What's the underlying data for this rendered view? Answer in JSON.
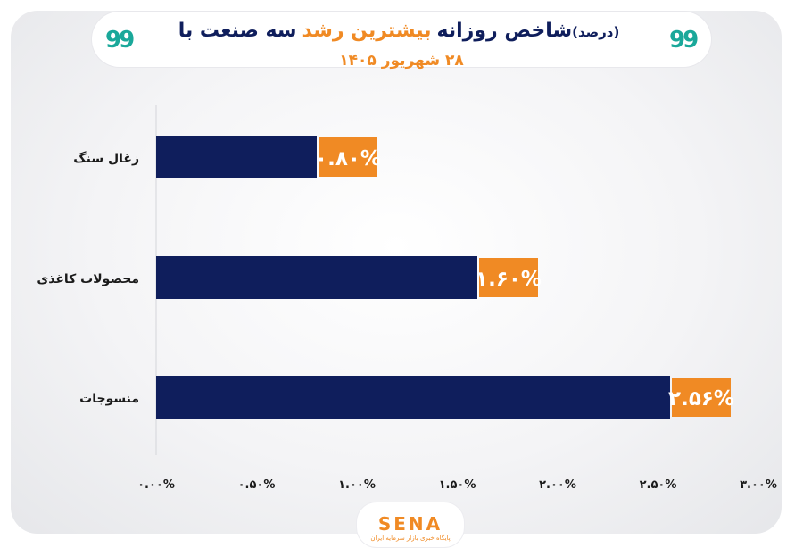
{
  "header": {
    "title_part1": "سه صنعت با",
    "title_highlight": "بیشترین رشد",
    "title_part2": "شاخص روزانه",
    "title_unit": "(درصد)",
    "subtitle": "۲۸ شهریور ۱۴۰۵",
    "quote_glyph": "99"
  },
  "brand": {
    "name": "SENA",
    "tagline": "پایگاه خبری بازار سرمایه ایران"
  },
  "colors": {
    "bar": "#0f1e5c",
    "label_bg": "#f08a24",
    "label_text": "#ffffff",
    "title_dark": "#0f1e5c",
    "accent": "#f08a24",
    "quote": "#1aa89a"
  },
  "chart_data": {
    "type": "bar",
    "orientation": "horizontal",
    "categories": [
      "زغال سنگ",
      "محصولات کاغذی",
      "منسوجات"
    ],
    "values": [
      0.8,
      1.6,
      2.56
    ],
    "data_labels": [
      "۰.۸۰%",
      "۱.۶۰%",
      "۲.۵۶%"
    ],
    "xlim": [
      0,
      3.0
    ],
    "xticks": [
      0,
      0.5,
      1.0,
      1.5,
      2.0,
      2.5,
      3.0
    ],
    "xtick_labels": [
      "۰.۰۰%",
      "۰.۵۰%",
      "۱.۰۰%",
      "۱.۵۰%",
      "۲.۰۰%",
      "۲.۵۰%",
      "۳.۰۰%"
    ],
    "grid": false,
    "legend": "none"
  }
}
